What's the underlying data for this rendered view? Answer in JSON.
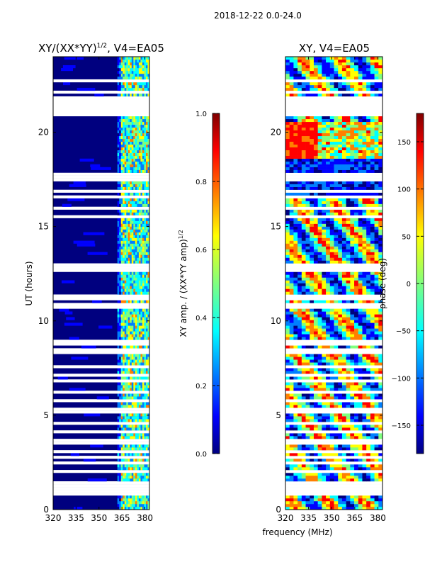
{
  "figure": {
    "suptitle": "2018-12-22 0.0-24.0",
    "xlabel": "frequency (MHz)"
  },
  "chart_data": [
    {
      "type": "heatmap",
      "title": "XY/(XX*YY)",
      "title_sup": "1/2",
      "title_suffix": ", V4=EA05",
      "ylabel": "UT (hours)",
      "xlim": [
        320,
        383
      ],
      "ylim": [
        0,
        24
      ],
      "xticks": [
        320,
        335,
        350,
        365,
        380
      ],
      "yticks": [
        0,
        5,
        10,
        15,
        20
      ],
      "colorbar": {
        "label": "XY amp. / (XX*YY amp)",
        "label_sup": "1/2",
        "range": [
          0.0,
          1.0
        ],
        "ticks": [
          "0.0",
          "0.2",
          "0.4",
          "0.6",
          "0.8",
          "1.0"
        ],
        "colormap": "jet"
      },
      "band_start_mhz": 362
    },
    {
      "type": "heatmap",
      "title": "XY, V4=EA05",
      "ylabel": "",
      "xlim": [
        320,
        383
      ],
      "ylim": [
        0,
        24
      ],
      "xticks": [
        320,
        335,
        350,
        365,
        380
      ],
      "yticks": [
        0,
        5,
        10,
        15,
        20
      ],
      "colorbar": {
        "label": "phase (deg)",
        "range": [
          -180,
          180
        ],
        "ticks": [
          "150",
          "100",
          "50",
          "0",
          "−50",
          "−100",
          "−150"
        ],
        "tick_values": [
          150,
          100,
          50,
          0,
          -50,
          -100,
          -150
        ],
        "colormap": "jet"
      }
    }
  ],
  "colors": {
    "jet": [
      "#00007f",
      "#0000ff",
      "#007fff",
      "#00ffff",
      "#7fff7f",
      "#ffff00",
      "#ff7f00",
      "#ff0000",
      "#7f0000"
    ]
  }
}
